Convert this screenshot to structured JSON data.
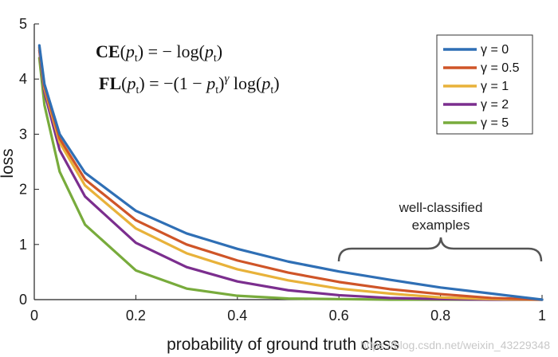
{
  "chart_data": {
    "type": "line",
    "xlabel": "probability of ground truth class",
    "ylabel": "loss",
    "xlim": [
      0,
      1
    ],
    "ylim": [
      0,
      5
    ],
    "xticks": [
      "0",
      "0.2",
      "0.4",
      "0.6",
      "0.8",
      "1"
    ],
    "yticks": [
      "0",
      "1",
      "2",
      "3",
      "4",
      "5"
    ],
    "grid": false,
    "legend_position": "top-right",
    "x": [
      0.01,
      0.02,
      0.05,
      0.1,
      0.2,
      0.3,
      0.4,
      0.5,
      0.6,
      0.7,
      0.8,
      0.9,
      1.0
    ],
    "series": [
      {
        "name": "γ = 0",
        "color": "#2f6fb5",
        "values": [
          4.61,
          3.91,
          3.0,
          2.3,
          1.61,
          1.2,
          0.92,
          0.69,
          0.51,
          0.36,
          0.22,
          0.11,
          0.0
        ]
      },
      {
        "name": "γ = 0.5",
        "color": "#cf5528",
        "values": [
          4.58,
          3.87,
          2.92,
          2.18,
          1.44,
          1.0,
          0.71,
          0.49,
          0.32,
          0.19,
          0.1,
          0.03,
          0.0
        ]
      },
      {
        "name": "γ = 1",
        "color": "#e8b23a",
        "values": [
          4.56,
          3.83,
          2.85,
          2.07,
          1.29,
          0.84,
          0.55,
          0.35,
          0.2,
          0.11,
          0.04,
          0.01,
          0.0
        ]
      },
      {
        "name": "γ = 2",
        "color": "#7b2e8e",
        "values": [
          4.52,
          3.76,
          2.71,
          1.87,
          1.03,
          0.59,
          0.33,
          0.17,
          0.08,
          0.03,
          0.01,
          0.0,
          0.0
        ]
      },
      {
        "name": "γ = 5",
        "color": "#78ab3c",
        "values": [
          4.38,
          3.53,
          2.32,
          1.36,
          0.53,
          0.2,
          0.07,
          0.02,
          0.01,
          0.0,
          0.0,
          0.0,
          0.0
        ]
      }
    ],
    "annotations": {
      "formula_ce": "CE(pt) = − log(pt)",
      "formula_fl": "FL(pt) = −(1 − pt)γ log(pt)",
      "brace_text_line1": "well-classified",
      "brace_text_line2": "examples",
      "watermark": "https://blog.csdn.net/weixin_43229348"
    }
  }
}
